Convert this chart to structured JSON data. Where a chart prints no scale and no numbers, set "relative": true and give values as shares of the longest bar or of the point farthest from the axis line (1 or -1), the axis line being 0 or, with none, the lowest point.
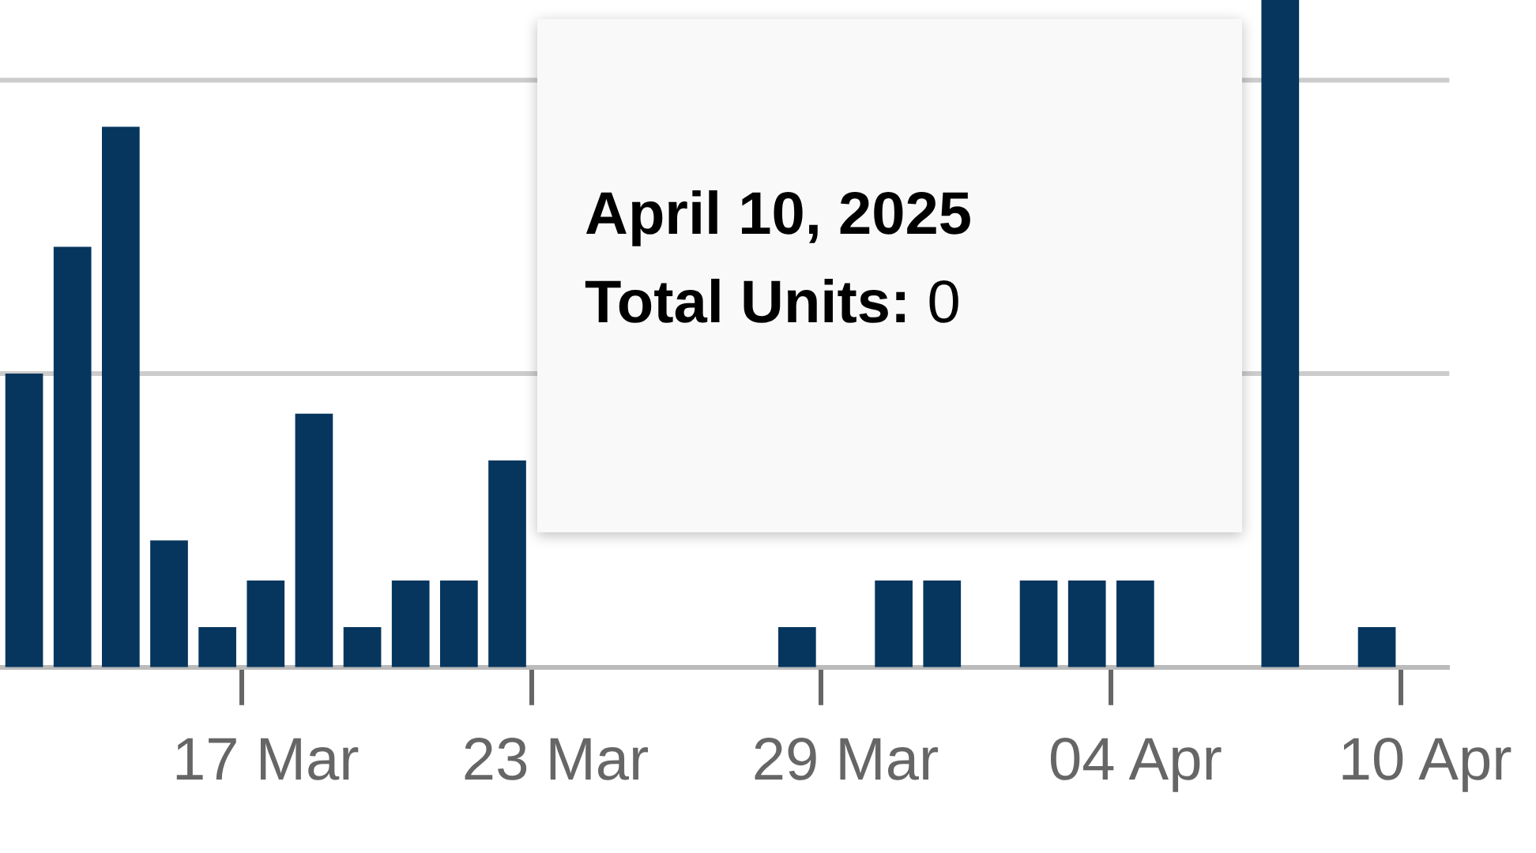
{
  "chart_data": {
    "type": "bar",
    "relative": true,
    "legend": false,
    "ref_lines": [
      {
        "axis": "y",
        "value": 0.44,
        "color": "#cccccc"
      },
      {
        "axis": "y",
        "value": 0.88,
        "color": "#cccccc"
      }
    ],
    "tick_labels": "x",
    "color": "#06365e",
    "categories": [
      null,
      null,
      null,
      null,
      null,
      "17 Mar",
      null,
      null,
      null,
      null,
      null,
      "23 Mar",
      null,
      null,
      null,
      null,
      null,
      "29 Mar",
      null,
      null,
      null,
      null,
      null,
      "04 Apr",
      null,
      null,
      null,
      null,
      null,
      "10 Apr"
    ],
    "values": [
      0.44,
      0.63,
      0.81,
      0.19,
      0.06,
      0.13,
      0.38,
      0.06,
      0.13,
      0.13,
      0.31,
      null,
      null,
      null,
      null,
      null,
      0.06,
      null,
      0.13,
      0.13,
      null,
      0.13,
      0.13,
      0.13,
      null,
      null,
      1,
      null,
      0.06,
      0
    ],
    "annotations": [
      "April 10, 2025",
      "Total Units: 0"
    ]
  }
}
